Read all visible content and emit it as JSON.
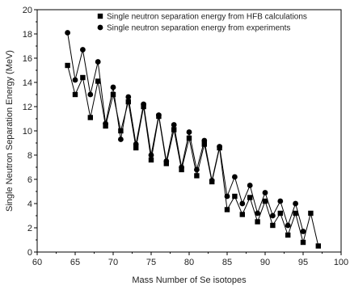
{
  "chart_data": {
    "type": "line",
    "xlabel": "Mass Number of Se isotopes",
    "ylabel": "Single Neutron Separation Energy (MeV)",
    "xlim": [
      60,
      100
    ],
    "ylim": [
      0,
      20
    ],
    "x_ticks": [
      60,
      65,
      70,
      75,
      80,
      85,
      90,
      95,
      100
    ],
    "y_ticks": [
      0,
      2,
      4,
      6,
      8,
      10,
      12,
      14,
      16,
      18,
      20
    ],
    "legend_position": "top-right",
    "grid": false,
    "series": [
      {
        "name": "Single neutron separation energy from HFB calculations",
        "marker": "square",
        "color": "#000000",
        "x": [
          64,
          65,
          66,
          67,
          68,
          69,
          70,
          71,
          72,
          73,
          74,
          75,
          76,
          77,
          78,
          79,
          80,
          81,
          82,
          83,
          84,
          85,
          86,
          87,
          88,
          89,
          90,
          91,
          92,
          93,
          94,
          95,
          96,
          97
        ],
        "y": [
          15.4,
          13.0,
          14.4,
          11.1,
          14.1,
          10.4,
          13.0,
          10.0,
          12.4,
          8.6,
          12.0,
          7.6,
          11.2,
          7.3,
          10.1,
          6.8,
          9.4,
          6.3,
          8.9,
          5.8,
          8.6,
          3.5,
          4.6,
          3.1,
          4.5,
          2.5,
          4.2,
          2.2,
          3.2,
          1.4,
          3.2,
          0.8,
          3.2,
          0.5
        ]
      },
      {
        "name": "Single neutron separation energy from experiments",
        "marker": "circle",
        "color": "#000000",
        "x": [
          64,
          65,
          66,
          67,
          68,
          69,
          70,
          71,
          72,
          73,
          74,
          75,
          76,
          77,
          78,
          79,
          80,
          81,
          82,
          83,
          84,
          85,
          86,
          87,
          88,
          89,
          90,
          91,
          92,
          93,
          94,
          95
        ],
        "y": [
          18.1,
          14.2,
          16.7,
          13.0,
          15.7,
          10.6,
          13.6,
          9.3,
          12.8,
          8.9,
          12.2,
          8.0,
          11.3,
          7.5,
          10.5,
          7.0,
          9.9,
          6.8,
          9.2,
          5.9,
          8.7,
          4.6,
          6.2,
          4.0,
          5.5,
          3.2,
          4.9,
          3.0,
          4.2,
          2.2,
          4.0,
          1.7
        ]
      }
    ]
  }
}
